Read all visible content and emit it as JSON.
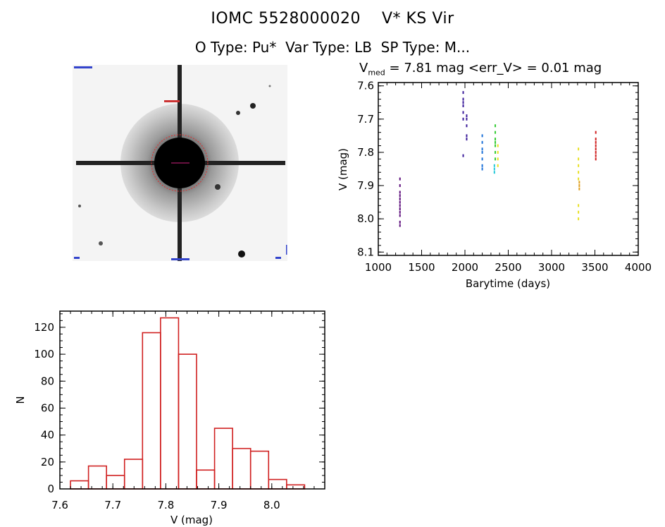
{
  "header": {
    "title": "IOMC 5528000020    V* KS Vir",
    "subtitle": "O Type: Pu*  Var Type: LB  SP Type: M..."
  },
  "stats": {
    "v_prefix": "V",
    "v_sub": "med",
    "v_rest": " = 7.81 mag <err_V> = 0.01 mag"
  },
  "chart_data": [
    {
      "type": "scatter",
      "title": "",
      "xlabel": "Barytime (days)",
      "ylabel": "V (mag)",
      "xlim": [
        1000,
        4000
      ],
      "ylim": [
        8.11,
        7.59
      ],
      "y_inverted": true,
      "xticks": [
        "1000",
        "1500",
        "2000",
        "2500",
        "3000",
        "3500",
        "4000"
      ],
      "yticks": [
        "7.6",
        "7.7",
        "7.8",
        "7.9",
        "8.0",
        "8.1"
      ],
      "series": [
        {
          "color": "#5a0a7a",
          "points": [
            [
              1250,
              7.88
            ],
            [
              1250,
              7.9
            ],
            [
              1250,
              7.92
            ],
            [
              1250,
              7.93
            ],
            [
              1250,
              7.94
            ],
            [
              1250,
              7.95
            ],
            [
              1250,
              7.96
            ],
            [
              1250,
              7.97
            ],
            [
              1250,
              7.98
            ],
            [
              1250,
              7.99
            ],
            [
              1250,
              8.01
            ],
            [
              1250,
              8.02
            ]
          ]
        },
        {
          "color": "#3a1a9a",
          "points": [
            [
              1980,
              7.62
            ],
            [
              1980,
              7.64
            ],
            [
              1980,
              7.65
            ],
            [
              1980,
              7.66
            ],
            [
              1980,
              7.68
            ],
            [
              1980,
              7.7
            ],
            [
              1980,
              7.81
            ],
            [
              2020,
              7.69
            ],
            [
              2020,
              7.7
            ],
            [
              2020,
              7.72
            ],
            [
              2020,
              7.75
            ],
            [
              2020,
              7.76
            ]
          ]
        },
        {
          "color": "#1a70d8",
          "points": [
            [
              2200,
              7.75
            ],
            [
              2200,
              7.77
            ],
            [
              2200,
              7.79
            ],
            [
              2200,
              7.8
            ],
            [
              2200,
              7.82
            ],
            [
              2200,
              7.84
            ],
            [
              2200,
              7.85
            ]
          ]
        },
        {
          "color": "#22c8d8",
          "points": [
            [
              2340,
              7.84
            ],
            [
              2340,
              7.85
            ],
            [
              2340,
              7.86
            ]
          ]
        },
        {
          "color": "#33cc33",
          "points": [
            [
              2350,
              7.72
            ],
            [
              2350,
              7.74
            ],
            [
              2350,
              7.76
            ],
            [
              2350,
              7.77
            ],
            [
              2350,
              7.78
            ],
            [
              2350,
              7.8
            ],
            [
              2350,
              7.82
            ]
          ]
        },
        {
          "color": "#e8e020",
          "points": [
            [
              2380,
              7.78
            ],
            [
              2380,
              7.8
            ],
            [
              2380,
              7.82
            ],
            [
              2380,
              7.84
            ],
            [
              3310,
              7.79
            ],
            [
              3310,
              7.82
            ],
            [
              3310,
              7.84
            ],
            [
              3310,
              7.86
            ],
            [
              3310,
              7.88
            ],
            [
              3310,
              7.96
            ],
            [
              3310,
              7.98
            ],
            [
              3310,
              8.0
            ]
          ]
        },
        {
          "color": "#e0a020",
          "points": [
            [
              3320,
              7.89
            ],
            [
              3320,
              7.9
            ],
            [
              3320,
              7.91
            ]
          ]
        },
        {
          "color": "#d02020",
          "points": [
            [
              3510,
              7.74
            ],
            [
              3510,
              7.76
            ],
            [
              3510,
              7.77
            ],
            [
              3510,
              7.78
            ],
            [
              3510,
              7.79
            ],
            [
              3510,
              7.8
            ],
            [
              3510,
              7.81
            ],
            [
              3510,
              7.82
            ]
          ]
        }
      ]
    },
    {
      "type": "bar",
      "title": "",
      "xlabel": "V (mag)",
      "ylabel": "N",
      "xlim": [
        7.6,
        8.1
      ],
      "ylim": [
        0,
        132
      ],
      "xticks": [
        "7.6",
        "7.7",
        "7.8",
        "7.9",
        "8.0"
      ],
      "yticks": [
        "0",
        "20",
        "40",
        "60",
        "80",
        "100",
        "120"
      ],
      "bin_width": 0.034,
      "bin_starts": [
        7.62,
        7.654,
        7.688,
        7.722,
        7.756,
        7.79,
        7.824,
        7.858,
        7.892,
        7.926,
        7.96,
        7.994,
        8.028
      ],
      "values": [
        6,
        17,
        10,
        22,
        116,
        127,
        100,
        14,
        45,
        30,
        28,
        7,
        3
      ],
      "bar_color": "#d02020"
    }
  ],
  "sky_image": {
    "description_hidden": "",
    "background": "#f5f5f5",
    "star_color": "#111111",
    "aperture_color": "#e03030",
    "corner_labels": [
      "",
      "",
      "",
      ""
    ]
  }
}
